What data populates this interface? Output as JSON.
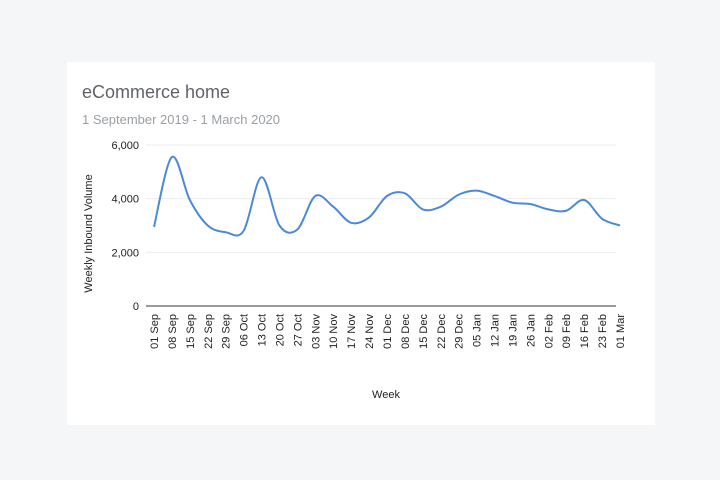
{
  "card": {
    "title": "eCommerce home",
    "subtitle": "1 September 2019 - 1 March 2020"
  },
  "chart_data": {
    "type": "line",
    "xlabel": "Week",
    "ylabel": "Weekly Inbound Volume",
    "ylim": [
      0,
      6000
    ],
    "yticks": [
      0,
      2000,
      4000,
      6000
    ],
    "ytick_labels": [
      "0",
      "2,000",
      "4,000",
      "6,000"
    ],
    "grid": true,
    "smooth": true,
    "line_color": "#4a8ad8",
    "categories": [
      "01 Sep",
      "08 Sep",
      "15 Sep",
      "22 Sep",
      "29 Sep",
      "06 Oct",
      "13 Oct",
      "20 Oct",
      "27 Oct",
      "03 Nov",
      "10 Nov",
      "17 Nov",
      "24 Nov",
      "01 Dec",
      "08 Dec",
      "15 Dec",
      "22 Dec",
      "29 Dec",
      "05 Jan",
      "12 Jan",
      "19 Jan",
      "26 Jan",
      "02 Feb",
      "09 Feb",
      "16 Feb",
      "23 Feb",
      "01 Mar"
    ],
    "values": [
      2950,
      5550,
      3950,
      3000,
      2750,
      2800,
      4800,
      3000,
      2850,
      4100,
      3700,
      3100,
      3300,
      4100,
      4200,
      3600,
      3700,
      4150,
      4300,
      4100,
      3850,
      3800,
      3600,
      3550,
      3950,
      3250,
      3000
    ]
  }
}
